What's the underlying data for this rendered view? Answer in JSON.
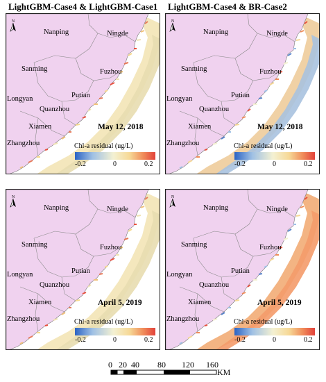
{
  "titles": {
    "left": "LightGBM-Case4 & LightGBM-Case1",
    "right": "LightGBM-Case4 & BR-Case2"
  },
  "cities": {
    "nanping": "Nanping",
    "ningde": "Ningde",
    "sanming": "Sanming",
    "fuzhou": "Fuzhou",
    "longyan": "Longyan",
    "putian": "Putian",
    "quanzhou": "Quanzhou",
    "xiamen": "Xiamen",
    "zhangzhou": "Zhangzhou"
  },
  "panels": [
    {
      "date": "May 12, 2018"
    },
    {
      "date": "May 12, 2018"
    },
    {
      "date": "April 5, 2019"
    },
    {
      "date": "April 5, 2019"
    }
  ],
  "legend": {
    "title": "Chl-a residual (ug/L)",
    "ticks": [
      "-0.2",
      "0",
      "0.2"
    ],
    "colors": {
      "low": "#2b63c4",
      "mid": "#f4f1d2",
      "high": "#e2413a"
    }
  },
  "north_label": "N",
  "scale_bar": {
    "labels": [
      "0",
      "20",
      "40",
      "80",
      "120",
      "160"
    ],
    "unit": "KM"
  },
  "colors": {
    "land": "#f0d2ef",
    "sea_bg": "#ffffff",
    "boundary": "#8a8a8a"
  }
}
